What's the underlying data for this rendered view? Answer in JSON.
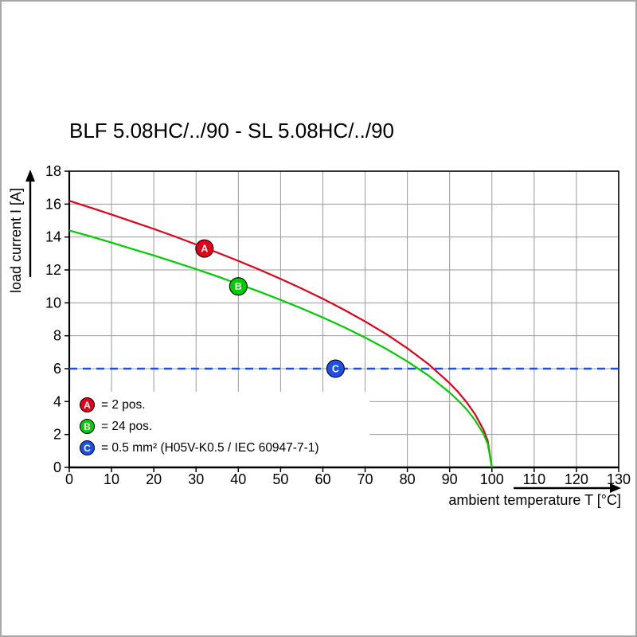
{
  "chart_data": {
    "type": "line",
    "title": "BLF 5.08HC/../90 - SL 5.08HC/../90",
    "xlabel": "ambient temperature T [°C]",
    "ylabel": "load current I [A]",
    "xlim": [
      0,
      130
    ],
    "ylim": [
      0,
      18
    ],
    "x_ticks": [
      0,
      10,
      20,
      30,
      40,
      50,
      60,
      70,
      80,
      90,
      100,
      110,
      120,
      130
    ],
    "y_ticks": [
      0,
      2,
      4,
      6,
      8,
      10,
      12,
      14,
      16,
      18
    ],
    "grid": true,
    "legend_position": "bottom-left-inside",
    "series": [
      {
        "name": "A",
        "label": "= 2 pos.",
        "color": "#e2001a",
        "dashed": false,
        "marker_at": [
          32,
          13.3
        ],
        "points": [
          [
            0,
            16.2
          ],
          [
            5,
            15.79
          ],
          [
            10,
            15.37
          ],
          [
            15,
            14.93
          ],
          [
            20,
            14.49
          ],
          [
            25,
            14.03
          ],
          [
            30,
            13.55
          ],
          [
            35,
            13.06
          ],
          [
            40,
            12.55
          ],
          [
            45,
            12.02
          ],
          [
            50,
            11.46
          ],
          [
            55,
            10.87
          ],
          [
            60,
            10.25
          ],
          [
            65,
            9.58
          ],
          [
            70,
            8.87
          ],
          [
            75,
            8.1
          ],
          [
            80,
            7.24
          ],
          [
            85,
            6.27
          ],
          [
            90,
            5.12
          ],
          [
            92,
            4.58
          ],
          [
            94,
            3.97
          ],
          [
            96,
            3.24
          ],
          [
            98,
            2.29
          ],
          [
            99,
            1.62
          ],
          [
            100,
            0
          ]
        ]
      },
      {
        "name": "B",
        "label": "= 24 pos.",
        "color": "#00cc00",
        "dashed": false,
        "marker_at": [
          40,
          11.0
        ],
        "points": [
          [
            0,
            14.4
          ],
          [
            5,
            14.04
          ],
          [
            10,
            13.66
          ],
          [
            15,
            13.27
          ],
          [
            20,
            12.88
          ],
          [
            25,
            12.47
          ],
          [
            30,
            12.05
          ],
          [
            35,
            11.61
          ],
          [
            40,
            11.15
          ],
          [
            45,
            10.68
          ],
          [
            50,
            10.18
          ],
          [
            55,
            9.66
          ],
          [
            60,
            9.11
          ],
          [
            65,
            8.52
          ],
          [
            70,
            7.89
          ],
          [
            75,
            7.2
          ],
          [
            80,
            6.44
          ],
          [
            85,
            5.58
          ],
          [
            90,
            4.55
          ],
          [
            92,
            4.07
          ],
          [
            94,
            3.53
          ],
          [
            96,
            2.88
          ],
          [
            98,
            2.04
          ],
          [
            99,
            1.44
          ],
          [
            100,
            0
          ]
        ]
      },
      {
        "name": "C",
        "label": "= 0.5 mm² (H05V-K0.5 / IEC 60947-7-1)",
        "color": "#1c50e8",
        "dashed": true,
        "marker_at": [
          63,
          6
        ],
        "points": [
          [
            0,
            6
          ],
          [
            130,
            6
          ]
        ]
      }
    ]
  }
}
